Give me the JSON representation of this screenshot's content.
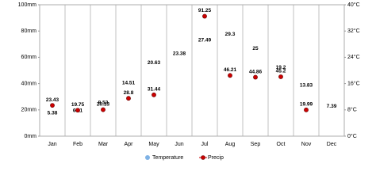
{
  "chart_data": {
    "type": "line",
    "categories": [
      "Jan",
      "Feb",
      "Mar",
      "Apr",
      "May",
      "Jun",
      "Jul",
      "Aug",
      "Sep",
      "Oct",
      "Nov",
      "Dec"
    ],
    "series": [
      {
        "name": "Temperature",
        "color": "#7fb2e5",
        "axis": "y2",
        "values": [
          5.38,
          6.11,
          8.53,
          14.51,
          20.63,
          23.38,
          27.49,
          29.3,
          25,
          19.2,
          13.83,
          7.39
        ]
      },
      {
        "name": "Precip",
        "color": "#cc0000",
        "values": [
          23.43,
          19.75,
          20.13,
          28.8,
          31.44,
          null,
          91.25,
          46.21,
          44.86,
          45.2,
          19.99,
          null
        ]
      }
    ],
    "ylim": [
      0,
      100
    ],
    "yticks": [
      {
        "value": 0,
        "label": "0mm"
      },
      {
        "value": 20,
        "label": "20mm"
      },
      {
        "value": 40,
        "label": "40mm"
      },
      {
        "value": 60,
        "label": "60mm"
      },
      {
        "value": 80,
        "label": "80mm"
      },
      {
        "value": 100,
        "label": "100mm"
      }
    ],
    "y2lim": [
      0,
      40
    ],
    "y2ticks": [
      {
        "value": 0,
        "label": "0°C"
      },
      {
        "value": 8,
        "label": "8°C"
      },
      {
        "value": 16,
        "label": "16°C"
      },
      {
        "value": 24,
        "label": "24°C"
      },
      {
        "value": 32,
        "label": "32°C"
      },
      {
        "value": 40,
        "label": "40°C"
      }
    ],
    "legend": "bottom"
  }
}
